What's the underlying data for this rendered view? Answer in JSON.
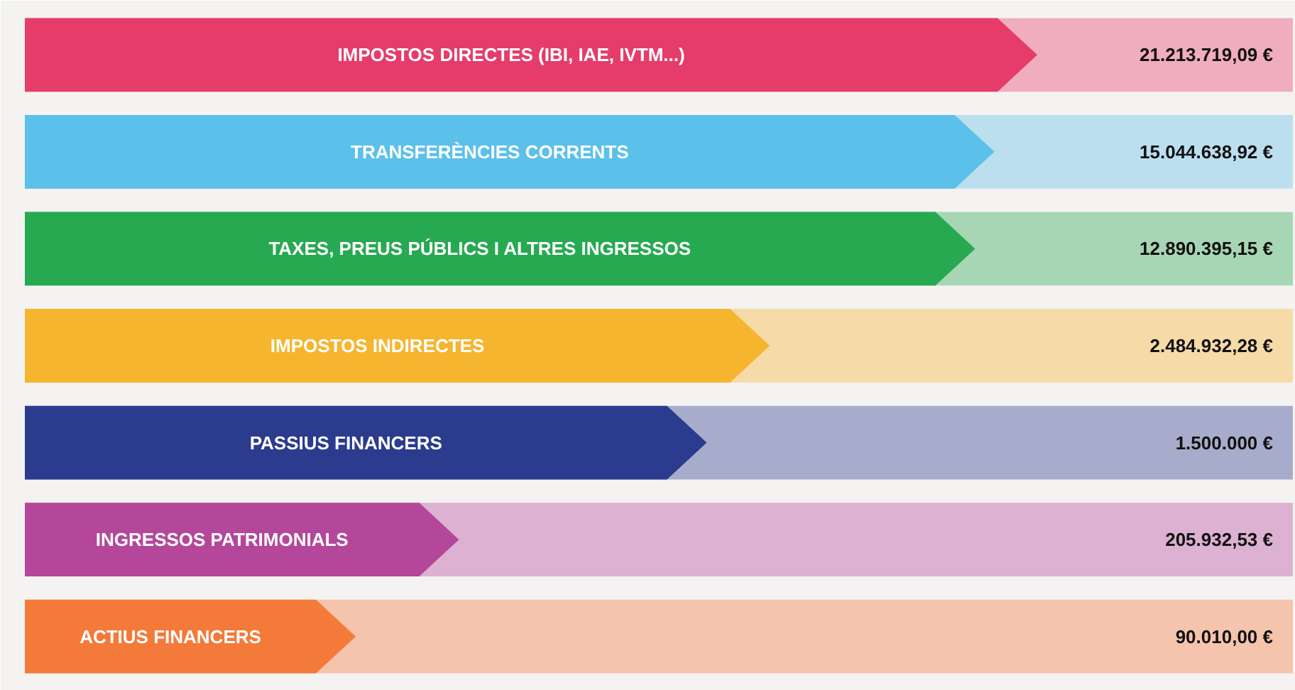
{
  "chart_data": {
    "type": "other",
    "categories": [
      "IMPOSTOS DIRECTES (IBI, IAE, IVTM...)",
      "TRANSFERÈNCIES CORRENTS",
      "TAXES, PREUS PÚBLICS I ALTRES INGRESSOS",
      "IMPOSTOS INDIRECTES",
      "PASSIUS FINANCERS",
      "INGRESSOS PATRIMONIALS",
      "ACTIUS FINANCERS"
    ],
    "values": [
      21213719.09,
      15044638.92,
      12890395.15,
      2484932.28,
      1500000,
      205932.53,
      90010.0
    ],
    "value_labels": [
      "21.213.719,09 €",
      "15.044.638,92 €",
      "12.890.395,15 €",
      "2.484.932,28 €",
      "1.500.000 €",
      "205.932,53 €",
      "90.010,00 €"
    ],
    "colors": [
      "#e53c6a",
      "#5bc0ea",
      "#27a952",
      "#f6b52f",
      "#2b3b8d",
      "#b4479a",
      "#f47a3a"
    ]
  }
}
